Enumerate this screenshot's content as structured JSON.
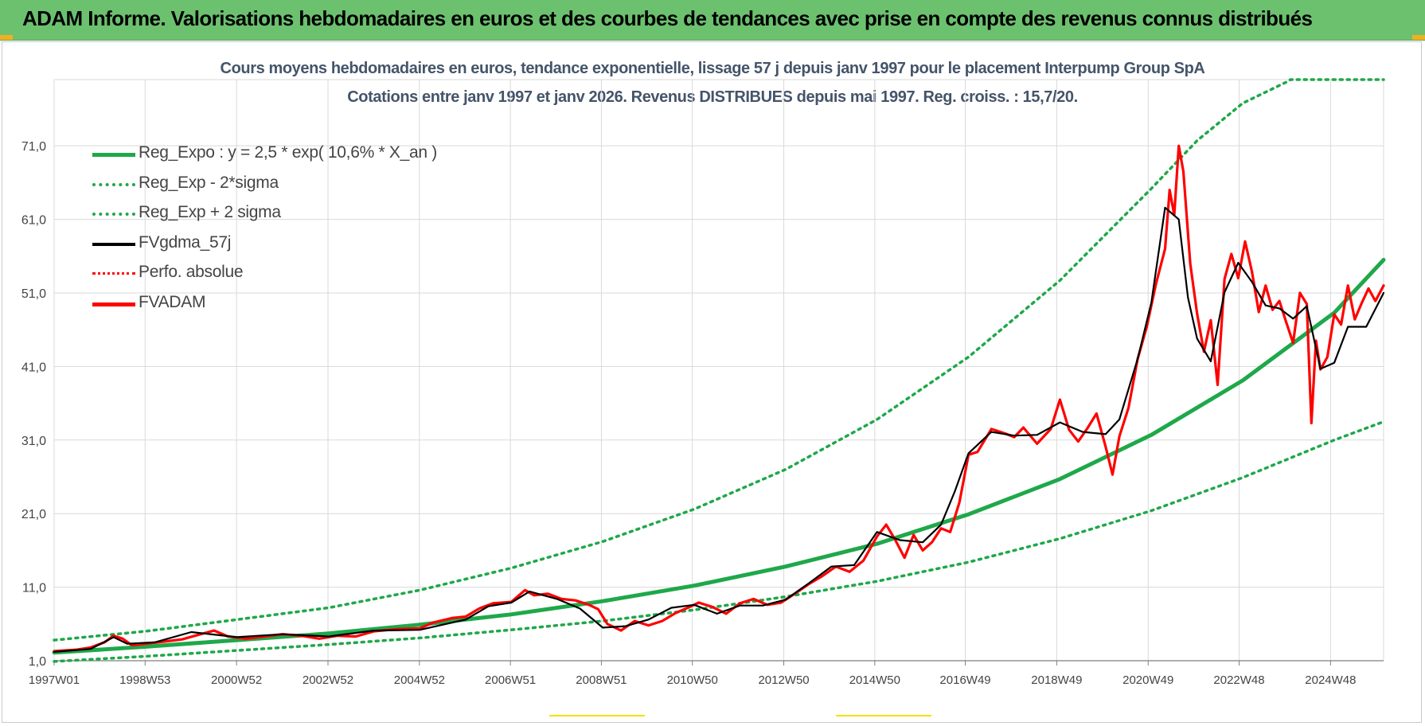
{
  "banner": {
    "title": "ADAM Informe. Valorisations hebdomadaires en euros et des courbes de tendances avec prise en compte des revenus connus distribués"
  },
  "colors": {
    "banner_bg": "#6cc16f",
    "trend_green": "#1fa84a",
    "price_red": "#ff0000",
    "smooth_black": "#000000",
    "grid": "#d9d9d9",
    "title_text": "#44546a"
  },
  "chart_data": {
    "type": "line",
    "title": "Cours moyens hebdomadaires en euros, tendance exponentielle, lissage 57 j depuis janv 1997  pour le placement Interpump Group SpA",
    "subtitle": "Cotations entre janv 1997 et janv 2026. Revenus DISTRIBUES depuis mai 1997.  Reg. croiss. : 15,7/20.",
    "xlabel": "",
    "ylabel": "",
    "x_range": [
      1997.0,
      2026.08
    ],
    "ylim": [
      1.0,
      80.0
    ],
    "y_ticks": [
      1.0,
      11.0,
      21.0,
      31.0,
      41.0,
      51.0,
      61.0,
      71.0
    ],
    "y_tick_labels": [
      "1,0",
      "11,0",
      "21,0",
      "31,0",
      "41,0",
      "51,0",
      "61,0",
      "71,0"
    ],
    "x_tick_positions": [
      1997.0,
      1998.99,
      2000.99,
      2002.99,
      2004.99,
      2006.98,
      2008.97,
      2010.96,
      2012.96,
      2014.95,
      2016.93,
      2018.93,
      2020.93,
      2022.92,
      2024.92
    ],
    "x_tick_labels": [
      "1997W01",
      "1998W53",
      "2000W52",
      "2002W52",
      "2004W52",
      "2006W51",
      "2008W51",
      "2010W50",
      "2012W50",
      "2014W50",
      "2016W49",
      "2018W49",
      "2020W49",
      "2022W48",
      "2024W48"
    ],
    "grid": true,
    "legend_position": "top-left",
    "legend": [
      "Reg_Expo : y = 2,5 * exp( 10,6% *  X_an )",
      "Reg_Exp - 2*sigma",
      "Reg_Exp + 2 sigma",
      "FVgdma_57j",
      "Perfo. absolue",
      "FVADAM"
    ],
    "series": [
      {
        "name": "Reg_Expo",
        "style": "solid",
        "color": "#1fa84a",
        "x": [
          1997,
          1999,
          2001,
          2003,
          2005,
          2007,
          2009,
          2011,
          2013,
          2015,
          2017,
          2019,
          2021,
          2023,
          2025,
          2026.08
        ],
        "values": [
          2.1,
          2.9,
          3.8,
          4.7,
          5.9,
          7.3,
          9.1,
          11.2,
          13.8,
          16.9,
          20.9,
          25.7,
          31.7,
          39.1,
          48.3,
          55.5
        ]
      },
      {
        "name": "Reg_Exp - 2*sigma",
        "style": "dotted",
        "color": "#1fa84a",
        "x": [
          1997,
          1999,
          2001,
          2003,
          2005,
          2007,
          2009,
          2011,
          2013,
          2015,
          2017,
          2019,
          2021,
          2023,
          2025,
          2026.08
        ],
        "values": [
          0.9,
          1.6,
          2.4,
          3.2,
          4.1,
          5.2,
          6.4,
          7.9,
          9.7,
          11.8,
          14.4,
          17.6,
          21.4,
          25.9,
          31.0,
          33.5
        ]
      },
      {
        "name": "Reg_Exp + 2 sigma",
        "style": "dotted",
        "color": "#1fa84a",
        "x": [
          1997,
          1999,
          2001,
          2003,
          2005,
          2007,
          2009,
          2011,
          2013,
          2015,
          2017,
          2019,
          2021,
          2022,
          2023,
          2024,
          2024.04,
          2026.08
        ],
        "values": [
          3.8,
          5.0,
          6.6,
          8.2,
          10.6,
          13.6,
          17.2,
          21.6,
          27.0,
          33.8,
          42.3,
          52.7,
          65.2,
          71.7,
          76.8,
          79.8,
          80.0,
          80.0
        ]
      },
      {
        "name": "FVgdma_57j",
        "style": "solid",
        "color": "#000000",
        "x": [
          1997,
          1997.8,
          1998.3,
          1998.6,
          1999.2,
          2000,
          2001,
          2002,
          2003,
          2004,
          2005,
          2006,
          2006.5,
          2007,
          2007.4,
          2008,
          2008.5,
          2009,
          2009.5,
          2010,
          2010.5,
          2011,
          2011.5,
          2012,
          2012.5,
          2013,
          2013.5,
          2014,
          2014.5,
          2015,
          2015.5,
          2016,
          2016.4,
          2016.7,
          2017,
          2017.5,
          2018,
          2018.5,
          2019,
          2019.5,
          2020,
          2020.3,
          2020.7,
          2021,
          2021.3,
          2021.6,
          2021.8,
          2022,
          2022.3,
          2022.6,
          2022.9,
          2023.2,
          2023.5,
          2023.8,
          2024.1,
          2024.4,
          2024.7,
          2025,
          2025.3,
          2025.7,
          2026.08
        ],
        "values": [
          2.2,
          2.6,
          4.2,
          3.3,
          3.5,
          4.9,
          4.2,
          4.6,
          4.3,
          5.1,
          5.2,
          6.6,
          8.4,
          8.9,
          10.4,
          9.4,
          8.1,
          5.5,
          5.7,
          6.6,
          8.2,
          8.6,
          7.4,
          8.5,
          8.5,
          9.3,
          11.5,
          13.8,
          14.0,
          18.5,
          17.4,
          17.1,
          19.5,
          24.0,
          29.2,
          32.1,
          31.6,
          31.7,
          33.4,
          32.1,
          31.8,
          33.8,
          42.0,
          49.7,
          62.6,
          61.0,
          50.4,
          44.8,
          41.7,
          51.1,
          55.1,
          52.5,
          49.3,
          48.9,
          47.5,
          49.2,
          40.7,
          41.5,
          46.4,
          46.4,
          51.0
        ]
      },
      {
        "name": "Perfo. absolue",
        "style": "dotted",
        "color": "#ff0000",
        "x": [
          1997,
          1997.8,
          1998.3,
          1998.6,
          1999.2,
          2000,
          2001,
          2002,
          2003,
          2004,
          2005,
          2006,
          2006.5,
          2007,
          2007.4,
          2008,
          2008.5,
          2009,
          2009.5,
          2010,
          2010.5,
          2011,
          2011.5,
          2012,
          2012.5,
          2013,
          2013.5,
          2014,
          2014.5,
          2015,
          2015.5,
          2016,
          2016.4,
          2016.7,
          2017,
          2017.5,
          2018,
          2018.5,
          2019,
          2019.5,
          2020,
          2020.3,
          2020.7,
          2021,
          2021.3,
          2021.6,
          2021.8,
          2022,
          2022.3,
          2022.6,
          2022.9,
          2023.2,
          2023.5,
          2023.8,
          2024.1,
          2024.4,
          2024.7,
          2025,
          2025.3,
          2025.7,
          2026.08
        ],
        "values": [
          2.2,
          2.6,
          4.2,
          3.3,
          3.5,
          4.9,
          4.2,
          4.6,
          4.3,
          5.1,
          5.2,
          6.6,
          8.4,
          8.9,
          10.4,
          9.4,
          8.1,
          5.5,
          5.7,
          6.6,
          8.2,
          8.6,
          7.4,
          8.5,
          8.5,
          9.3,
          11.5,
          13.8,
          14.0,
          18.5,
          17.4,
          17.1,
          19.5,
          24.0,
          29.2,
          32.1,
          31.6,
          31.7,
          33.4,
          32.1,
          31.8,
          33.8,
          42.0,
          49.7,
          62.6,
          61.0,
          50.4,
          44.8,
          41.7,
          51.1,
          55.1,
          52.5,
          49.3,
          48.9,
          47.5,
          49.2,
          40.7,
          41.5,
          46.4,
          46.4,
          51.0
        ]
      },
      {
        "name": "FVADAM",
        "style": "solid",
        "color": "#ff0000",
        "x": [
          1997,
          1997.5,
          1997.8,
          1998.1,
          1998.3,
          1998.5,
          1998.7,
          1999,
          1999.4,
          1999.8,
          2000.2,
          2000.5,
          2000.8,
          2001.2,
          2001.6,
          2002,
          2002.4,
          2002.8,
          2003.2,
          2003.6,
          2004,
          2004.5,
          2005,
          2005.3,
          2005.7,
          2006,
          2006.3,
          2006.6,
          2007,
          2007.3,
          2007.5,
          2007.8,
          2008.1,
          2008.4,
          2008.7,
          2008.9,
          2009.1,
          2009.4,
          2009.7,
          2010,
          2010.3,
          2010.6,
          2010.9,
          2011.1,
          2011.4,
          2011.7,
          2012,
          2012.3,
          2012.6,
          2012.9,
          2013.2,
          2013.5,
          2013.8,
          2014.1,
          2014.4,
          2014.7,
          2015,
          2015.2,
          2015.4,
          2015.6,
          2015.8,
          2016,
          2016.2,
          2016.4,
          2016.6,
          2016.8,
          2017,
          2017.2,
          2017.5,
          2017.8,
          2018,
          2018.2,
          2018.5,
          2018.8,
          2019,
          2019.2,
          2019.4,
          2019.6,
          2019.8,
          2020,
          2020.15,
          2020.3,
          2020.5,
          2020.7,
          2020.9,
          2021.1,
          2021.3,
          2021.4,
          2021.5,
          2021.6,
          2021.7,
          2021.85,
          2022,
          2022.15,
          2022.3,
          2022.45,
          2022.6,
          2022.75,
          2022.9,
          2023.05,
          2023.2,
          2023.35,
          2023.5,
          2023.65,
          2023.8,
          2023.95,
          2024.1,
          2024.25,
          2024.4,
          2024.5,
          2024.6,
          2024.7,
          2024.85,
          2025,
          2025.15,
          2025.3,
          2025.45,
          2025.6,
          2025.75,
          2025.9,
          2026.08
        ],
        "values": [
          2.3,
          2.5,
          2.8,
          3.5,
          4.4,
          4.0,
          3.1,
          3.3,
          3.6,
          3.9,
          4.6,
          5.1,
          4.3,
          4.0,
          4.3,
          4.6,
          4.4,
          4.0,
          4.4,
          4.3,
          5.0,
          5.3,
          5.4,
          6.2,
          6.8,
          7.0,
          8.1,
          8.8,
          9.0,
          10.6,
          9.9,
          10.1,
          9.4,
          9.2,
          8.6,
          8.0,
          6.0,
          5.1,
          6.4,
          5.8,
          6.4,
          7.5,
          8.3,
          8.9,
          8.3,
          7.4,
          8.8,
          9.4,
          8.6,
          8.9,
          10.1,
          11.4,
          12.5,
          13.8,
          13.1,
          14.6,
          17.9,
          19.5,
          17.4,
          15.0,
          18.1,
          16.0,
          17.1,
          19.0,
          18.5,
          22.5,
          29.0,
          29.4,
          32.5,
          31.9,
          31.4,
          32.7,
          30.5,
          32.5,
          36.5,
          32.4,
          30.8,
          32.6,
          34.6,
          30.1,
          26.3,
          31.5,
          35.4,
          42.0,
          46.4,
          52.2,
          57.0,
          65.0,
          61.6,
          71.0,
          67.5,
          55.0,
          48.2,
          43.0,
          47.3,
          38.5,
          52.9,
          56.3,
          53.0,
          58.0,
          53.9,
          48.4,
          52.0,
          48.7,
          49.9,
          47.0,
          44.2,
          51.0,
          49.5,
          33.3,
          44.5,
          40.6,
          42.3,
          48.1,
          46.7,
          52.0,
          47.4,
          49.6,
          51.6,
          49.9,
          52.0
        ]
      }
    ]
  }
}
